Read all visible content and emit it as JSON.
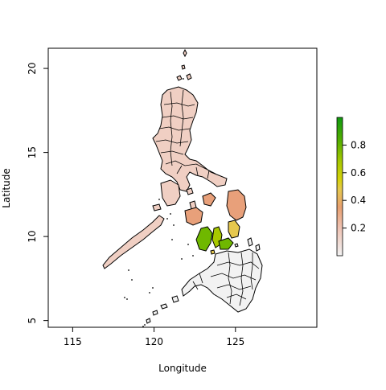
{
  "chart_data": {
    "type": "map",
    "title": "",
    "xlabel": "Longitude",
    "ylabel": "Latitude",
    "xlim": [
      113.5,
      130
    ],
    "ylim": [
      4.6,
      21.2
    ],
    "x_ticks": [
      "115",
      "120",
      "125"
    ],
    "y_ticks": [
      "5",
      "10",
      "15",
      "20"
    ],
    "legend": {
      "type": "colorbar",
      "placement": "right",
      "tick_labels": [
        "0.2",
        "0.4",
        "0.6",
        "0.8"
      ],
      "tick_values": [
        0.2,
        0.4,
        0.6,
        0.8
      ],
      "range": [
        0.0,
        1.0
      ],
      "colors": [
        "#f2f2f2",
        "#efc3b4",
        "#e8a070",
        "#e6c84e",
        "#d6d20a",
        "#a8c800",
        "#5ab000",
        "#109a10"
      ]
    },
    "colors": {
      "luzon_fill": "#f0cfc3",
      "visayas_fill": "#e8a07a",
      "cebu_green": "#6fb800",
      "mindanao_fill": "#f2f2f2",
      "outline": "#000000"
    }
  }
}
